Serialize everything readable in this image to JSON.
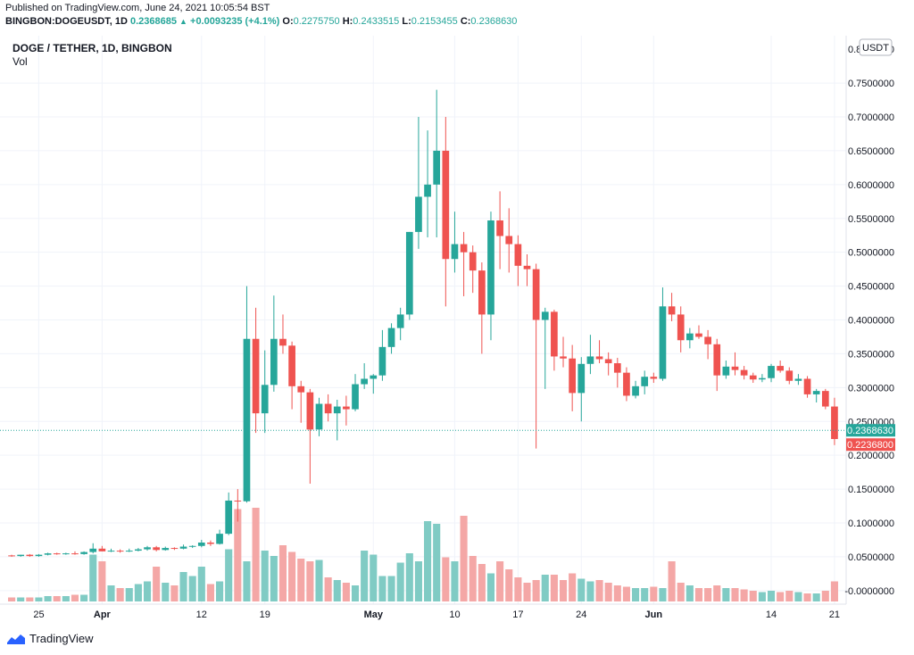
{
  "published": "Published on TradingView.com, June 24, 2021 10:05:54 BST",
  "ohlc": {
    "symbol": "BINGBON:DOGEUSDT, 1D",
    "last": "0.2368685",
    "change": "+0.0093235 (+4.1%)",
    "o_label": "O:",
    "o": "0.2275750",
    "h_label": "H:",
    "h": "0.2433515",
    "l_label": "L:",
    "l": "0.2153455",
    "c_label": "C:",
    "c": "0.2368630"
  },
  "legend": {
    "title": "DOGE / TETHER, 1D, BINGBON",
    "vol": "Vol"
  },
  "currency_button": "USDT",
  "footer_brand": "TradingView",
  "colors": {
    "up": "#26a69a",
    "down": "#ef5350",
    "up_vol": "#80cbc4",
    "down_vol": "#f4a7a6",
    "grid": "#f0f3fa"
  },
  "chart_data": {
    "type": "candlestick",
    "title": "DOGE / TETHER, 1D, BINGBON",
    "x_tick_labels": [
      "25",
      "Apr",
      "12",
      "19",
      "May",
      "10",
      "17",
      "24",
      "Jun",
      "14",
      "21"
    ],
    "y_tick_labels": [
      "0.7500000",
      "0.7000000",
      "0.6500000",
      "0.6000000",
      "0.5500000",
      "0.5000000",
      "0.4500000",
      "0.4000000",
      "0.3500000",
      "0.3000000",
      "0.2500000",
      "0.2000000",
      "0.1500000",
      "0.1000000",
      "0.0500000",
      "-0.0000000"
    ],
    "y_top_label": "0.8000000",
    "ylim": [
      -0.02,
      0.82
    ],
    "price_labels": [
      {
        "value": 0.236863,
        "text": "0.2368630",
        "color": "#26a69a"
      },
      {
        "value": 0.22368,
        "text": "0.2236800",
        "color": "#ef5350"
      }
    ],
    "candles": [
      {
        "date": "2021-03-22",
        "o": 0.052,
        "h": 0.053,
        "l": 0.05,
        "c": 0.051
      },
      {
        "date": "2021-03-23",
        "o": 0.051,
        "h": 0.053,
        "l": 0.05,
        "c": 0.053
      },
      {
        "date": "2021-03-24",
        "o": 0.053,
        "h": 0.054,
        "l": 0.05,
        "c": 0.051
      },
      {
        "date": "2021-03-25",
        "o": 0.051,
        "h": 0.054,
        "l": 0.05,
        "c": 0.053
      },
      {
        "date": "2021-03-26",
        "o": 0.053,
        "h": 0.056,
        "l": 0.052,
        "c": 0.055
      },
      {
        "date": "2021-03-27",
        "o": 0.055,
        "h": 0.056,
        "l": 0.053,
        "c": 0.054
      },
      {
        "date": "2021-03-28",
        "o": 0.054,
        "h": 0.056,
        "l": 0.053,
        "c": 0.055
      },
      {
        "date": "2021-03-29",
        "o": 0.055,
        "h": 0.058,
        "l": 0.053,
        "c": 0.054
      },
      {
        "date": "2021-03-30",
        "o": 0.054,
        "h": 0.058,
        "l": 0.053,
        "c": 0.057
      },
      {
        "date": "2021-03-31",
        "o": 0.057,
        "h": 0.07,
        "l": 0.055,
        "c": 0.062
      },
      {
        "date": "2021-04-01",
        "o": 0.062,
        "h": 0.066,
        "l": 0.058,
        "c": 0.058
      },
      {
        "date": "2021-04-02",
        "o": 0.058,
        "h": 0.062,
        "l": 0.057,
        "c": 0.059
      },
      {
        "date": "2021-04-03",
        "o": 0.059,
        "h": 0.061,
        "l": 0.056,
        "c": 0.058
      },
      {
        "date": "2021-04-04",
        "o": 0.058,
        "h": 0.062,
        "l": 0.057,
        "c": 0.059
      },
      {
        "date": "2021-04-05",
        "o": 0.059,
        "h": 0.063,
        "l": 0.058,
        "c": 0.061
      },
      {
        "date": "2021-04-06",
        "o": 0.061,
        "h": 0.066,
        "l": 0.059,
        "c": 0.064
      },
      {
        "date": "2021-04-07",
        "o": 0.064,
        "h": 0.066,
        "l": 0.058,
        "c": 0.06
      },
      {
        "date": "2021-04-08",
        "o": 0.06,
        "h": 0.065,
        "l": 0.059,
        "c": 0.063
      },
      {
        "date": "2021-04-09",
        "o": 0.063,
        "h": 0.064,
        "l": 0.06,
        "c": 0.062
      },
      {
        "date": "2021-04-10",
        "o": 0.062,
        "h": 0.068,
        "l": 0.061,
        "c": 0.065
      },
      {
        "date": "2021-04-11",
        "o": 0.065,
        "h": 0.067,
        "l": 0.063,
        "c": 0.066
      },
      {
        "date": "2021-04-12",
        "o": 0.066,
        "h": 0.075,
        "l": 0.064,
        "c": 0.071
      },
      {
        "date": "2021-04-13",
        "o": 0.071,
        "h": 0.074,
        "l": 0.066,
        "c": 0.069
      },
      {
        "date": "2021-04-14",
        "o": 0.069,
        "h": 0.09,
        "l": 0.068,
        "c": 0.084
      },
      {
        "date": "2021-04-15",
        "o": 0.084,
        "h": 0.145,
        "l": 0.082,
        "c": 0.133
      },
      {
        "date": "2021-04-16",
        "o": 0.133,
        "h": 0.15,
        "l": 0.102,
        "c": 0.132
      },
      {
        "date": "2021-04-17",
        "o": 0.132,
        "h": 0.45,
        "l": 0.13,
        "c": 0.372
      },
      {
        "date": "2021-04-18",
        "o": 0.372,
        "h": 0.418,
        "l": 0.233,
        "c": 0.262
      },
      {
        "date": "2021-04-19",
        "o": 0.262,
        "h": 0.355,
        "l": 0.233,
        "c": 0.304
      },
      {
        "date": "2021-04-20",
        "o": 0.304,
        "h": 0.436,
        "l": 0.294,
        "c": 0.372
      },
      {
        "date": "2021-04-21",
        "o": 0.372,
        "h": 0.408,
        "l": 0.35,
        "c": 0.362
      },
      {
        "date": "2021-04-22",
        "o": 0.362,
        "h": 0.368,
        "l": 0.268,
        "c": 0.302
      },
      {
        "date": "2021-04-23",
        "o": 0.302,
        "h": 0.31,
        "l": 0.248,
        "c": 0.293
      },
      {
        "date": "2021-04-24",
        "o": 0.293,
        "h": 0.298,
        "l": 0.158,
        "c": 0.238
      },
      {
        "date": "2021-04-25",
        "o": 0.238,
        "h": 0.285,
        "l": 0.228,
        "c": 0.276
      },
      {
        "date": "2021-04-26",
        "o": 0.276,
        "h": 0.29,
        "l": 0.25,
        "c": 0.262
      },
      {
        "date": "2021-04-27",
        "o": 0.262,
        "h": 0.282,
        "l": 0.222,
        "c": 0.272
      },
      {
        "date": "2021-04-28",
        "o": 0.272,
        "h": 0.288,
        "l": 0.244,
        "c": 0.268
      },
      {
        "date": "2021-04-29",
        "o": 0.268,
        "h": 0.32,
        "l": 0.265,
        "c": 0.305
      },
      {
        "date": "2021-04-30",
        "o": 0.305,
        "h": 0.336,
        "l": 0.298,
        "c": 0.313
      },
      {
        "date": "2021-05-01",
        "o": 0.313,
        "h": 0.32,
        "l": 0.291,
        "c": 0.318
      },
      {
        "date": "2021-05-02",
        "o": 0.318,
        "h": 0.385,
        "l": 0.31,
        "c": 0.36
      },
      {
        "date": "2021-05-03",
        "o": 0.36,
        "h": 0.395,
        "l": 0.35,
        "c": 0.388
      },
      {
        "date": "2021-05-04",
        "o": 0.388,
        "h": 0.418,
        "l": 0.37,
        "c": 0.408
      },
      {
        "date": "2021-05-05",
        "o": 0.408,
        "h": 0.53,
        "l": 0.4,
        "c": 0.53
      },
      {
        "date": "2021-05-06",
        "o": 0.53,
        "h": 0.7,
        "l": 0.505,
        "c": 0.582
      },
      {
        "date": "2021-05-07",
        "o": 0.582,
        "h": 0.68,
        "l": 0.522,
        "c": 0.6
      },
      {
        "date": "2021-05-08",
        "o": 0.6,
        "h": 0.74,
        "l": 0.522,
        "c": 0.65
      },
      {
        "date": "2021-05-09",
        "o": 0.65,
        "h": 0.7,
        "l": 0.42,
        "c": 0.49
      },
      {
        "date": "2021-05-10",
        "o": 0.49,
        "h": 0.56,
        "l": 0.47,
        "c": 0.512
      },
      {
        "date": "2021-05-11",
        "o": 0.512,
        "h": 0.53,
        "l": 0.435,
        "c": 0.5
      },
      {
        "date": "2021-05-12",
        "o": 0.5,
        "h": 0.51,
        "l": 0.44,
        "c": 0.473
      },
      {
        "date": "2021-05-13",
        "o": 0.473,
        "h": 0.485,
        "l": 0.35,
        "c": 0.408
      },
      {
        "date": "2021-05-14",
        "o": 0.408,
        "h": 0.56,
        "l": 0.37,
        "c": 0.547
      },
      {
        "date": "2021-05-15",
        "o": 0.547,
        "h": 0.59,
        "l": 0.475,
        "c": 0.524
      },
      {
        "date": "2021-05-16",
        "o": 0.524,
        "h": 0.565,
        "l": 0.47,
        "c": 0.512
      },
      {
        "date": "2021-05-17",
        "o": 0.512,
        "h": 0.525,
        "l": 0.45,
        "c": 0.48
      },
      {
        "date": "2021-05-18",
        "o": 0.48,
        "h": 0.497,
        "l": 0.45,
        "c": 0.475
      },
      {
        "date": "2021-05-19",
        "o": 0.475,
        "h": 0.483,
        "l": 0.21,
        "c": 0.4
      },
      {
        "date": "2021-05-20",
        "o": 0.4,
        "h": 0.418,
        "l": 0.298,
        "c": 0.412
      },
      {
        "date": "2021-05-21",
        "o": 0.412,
        "h": 0.415,
        "l": 0.325,
        "c": 0.346
      },
      {
        "date": "2021-05-22",
        "o": 0.346,
        "h": 0.375,
        "l": 0.33,
        "c": 0.343
      },
      {
        "date": "2021-05-23",
        "o": 0.343,
        "h": 0.363,
        "l": 0.265,
        "c": 0.292
      },
      {
        "date": "2021-05-24",
        "o": 0.292,
        "h": 0.345,
        "l": 0.25,
        "c": 0.335
      },
      {
        "date": "2021-05-25",
        "o": 0.335,
        "h": 0.378,
        "l": 0.32,
        "c": 0.346
      },
      {
        "date": "2021-05-26",
        "o": 0.346,
        "h": 0.37,
        "l": 0.336,
        "c": 0.342
      },
      {
        "date": "2021-05-27",
        "o": 0.342,
        "h": 0.352,
        "l": 0.318,
        "c": 0.336
      },
      {
        "date": "2021-05-28",
        "o": 0.336,
        "h": 0.344,
        "l": 0.3,
        "c": 0.322
      },
      {
        "date": "2021-05-29",
        "o": 0.322,
        "h": 0.33,
        "l": 0.28,
        "c": 0.288
      },
      {
        "date": "2021-05-30",
        "o": 0.288,
        "h": 0.31,
        "l": 0.284,
        "c": 0.302
      },
      {
        "date": "2021-05-31",
        "o": 0.302,
        "h": 0.325,
        "l": 0.29,
        "c": 0.316
      },
      {
        "date": "2021-06-01",
        "o": 0.316,
        "h": 0.322,
        "l": 0.307,
        "c": 0.313
      },
      {
        "date": "2021-06-02",
        "o": 0.313,
        "h": 0.448,
        "l": 0.31,
        "c": 0.42
      },
      {
        "date": "2021-06-03",
        "o": 0.42,
        "h": 0.44,
        "l": 0.398,
        "c": 0.408
      },
      {
        "date": "2021-06-04",
        "o": 0.408,
        "h": 0.42,
        "l": 0.352,
        "c": 0.37
      },
      {
        "date": "2021-06-05",
        "o": 0.37,
        "h": 0.388,
        "l": 0.358,
        "c": 0.38
      },
      {
        "date": "2021-06-06",
        "o": 0.38,
        "h": 0.392,
        "l": 0.372,
        "c": 0.375
      },
      {
        "date": "2021-06-07",
        "o": 0.375,
        "h": 0.385,
        "l": 0.342,
        "c": 0.364
      },
      {
        "date": "2021-06-08",
        "o": 0.364,
        "h": 0.372,
        "l": 0.295,
        "c": 0.318
      },
      {
        "date": "2021-06-09",
        "o": 0.318,
        "h": 0.34,
        "l": 0.313,
        "c": 0.331
      },
      {
        "date": "2021-06-10",
        "o": 0.331,
        "h": 0.352,
        "l": 0.318,
        "c": 0.326
      },
      {
        "date": "2021-06-11",
        "o": 0.326,
        "h": 0.332,
        "l": 0.312,
        "c": 0.318
      },
      {
        "date": "2021-06-12",
        "o": 0.318,
        "h": 0.322,
        "l": 0.307,
        "c": 0.312
      },
      {
        "date": "2021-06-13",
        "o": 0.312,
        "h": 0.32,
        "l": 0.308,
        "c": 0.314
      },
      {
        "date": "2021-06-14",
        "o": 0.314,
        "h": 0.335,
        "l": 0.308,
        "c": 0.332
      },
      {
        "date": "2021-06-15",
        "o": 0.332,
        "h": 0.34,
        "l": 0.322,
        "c": 0.325
      },
      {
        "date": "2021-06-16",
        "o": 0.325,
        "h": 0.33,
        "l": 0.305,
        "c": 0.31
      },
      {
        "date": "2021-06-17",
        "o": 0.31,
        "h": 0.32,
        "l": 0.304,
        "c": 0.313
      },
      {
        "date": "2021-06-18",
        "o": 0.313,
        "h": 0.317,
        "l": 0.285,
        "c": 0.29
      },
      {
        "date": "2021-06-19",
        "o": 0.29,
        "h": 0.298,
        "l": 0.278,
        "c": 0.295
      },
      {
        "date": "2021-06-20",
        "o": 0.295,
        "h": 0.298,
        "l": 0.268,
        "c": 0.272
      },
      {
        "date": "2021-06-21",
        "o": 0.272,
        "h": 0.285,
        "l": 0.215,
        "c": 0.224
      }
    ],
    "volume": [
      3,
      3,
      3,
      3,
      4,
      4,
      4,
      5,
      5,
      35,
      30,
      12,
      10,
      10,
      13,
      15,
      26,
      14,
      12,
      22,
      19,
      26,
      13,
      15,
      39,
      69,
      30,
      70,
      38,
      34,
      42,
      37,
      32,
      30,
      31,
      18,
      16,
      14,
      12,
      38,
      35,
      19,
      19,
      29,
      36,
      30,
      60,
      58,
      33,
      30,
      64,
      34,
      28,
      21,
      30,
      24,
      18,
      14,
      16,
      20,
      20,
      16,
      21,
      17,
      15,
      16,
      14,
      12,
      11,
      10,
      10,
      11,
      10,
      30,
      14,
      12,
      10,
      10,
      12,
      10,
      10,
      9,
      8,
      7,
      8,
      7,
      8,
      7,
      6,
      6,
      8,
      15
    ]
  }
}
